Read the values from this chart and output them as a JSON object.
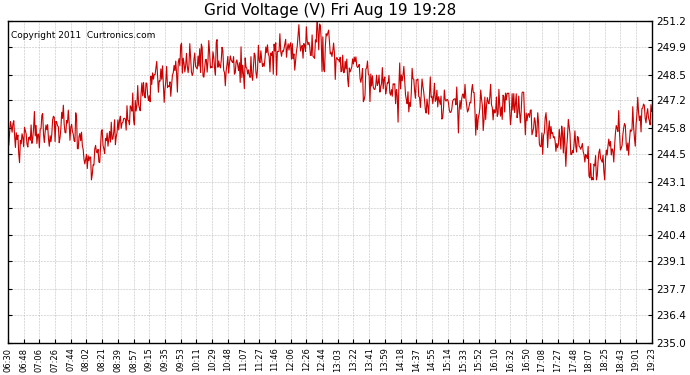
{
  "title": "Grid Voltage (V) Fri Aug 19 19:28",
  "copyright": "Copyright 2011  Curtronics.com",
  "line_color": "#cc0000",
  "bg_color": "#ffffff",
  "plot_bg_color": "#ffffff",
  "grid_color": "#b0b0b0",
  "yticks": [
    235.0,
    236.4,
    237.7,
    239.1,
    240.4,
    241.8,
    243.1,
    244.5,
    245.8,
    247.2,
    248.5,
    249.9,
    251.2
  ],
  "ymin": 235.0,
  "ymax": 251.2,
  "xtick_labels": [
    "06:30",
    "06:48",
    "07:06",
    "07:26",
    "07:44",
    "08:02",
    "08:21",
    "08:39",
    "08:57",
    "09:15",
    "09:35",
    "09:53",
    "10:11",
    "10:29",
    "10:48",
    "11:07",
    "11:27",
    "11:46",
    "12:06",
    "12:26",
    "12:44",
    "13:03",
    "13:22",
    "13:41",
    "13:59",
    "14:18",
    "14:37",
    "14:55",
    "15:14",
    "15:33",
    "15:52",
    "16:10",
    "16:32",
    "16:50",
    "17:08",
    "17:27",
    "17:48",
    "18:07",
    "18:25",
    "18:43",
    "19:01",
    "19:23"
  ],
  "seed": 42,
  "n_points": 780,
  "figwidth": 6.9,
  "figheight": 3.75,
  "dpi": 100
}
